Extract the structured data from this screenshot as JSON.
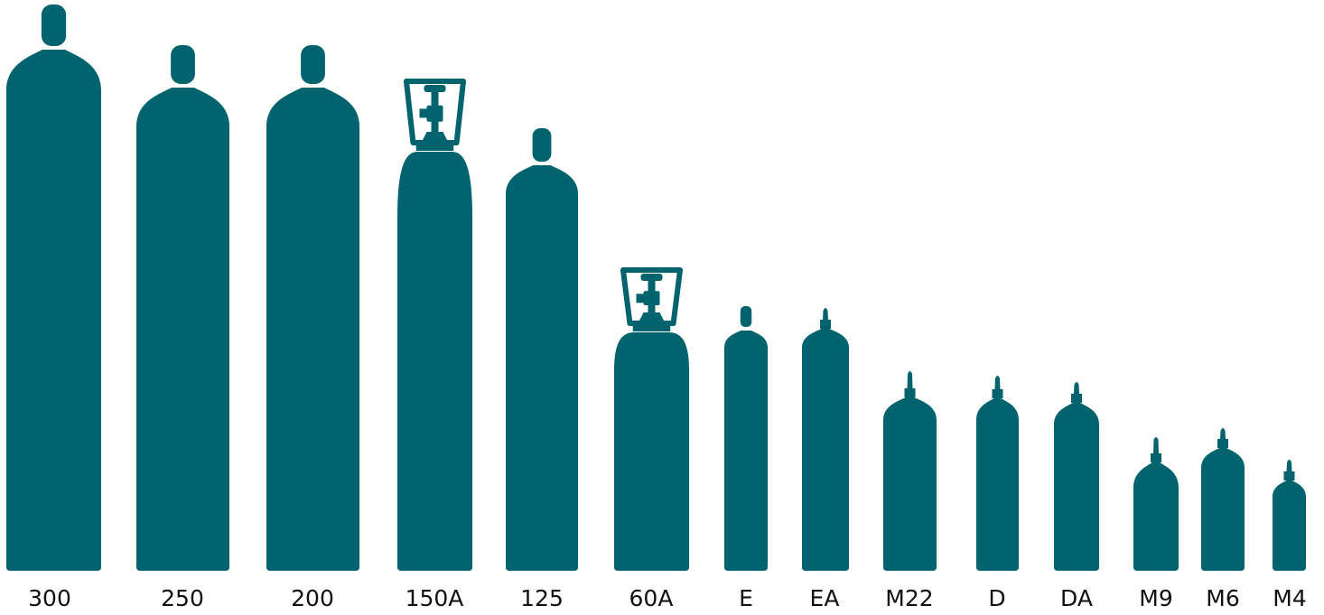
{
  "cylinders": [
    {
      "label": "300"
    },
    {
      "label": "250"
    },
    {
      "label": "200"
    },
    {
      "label": "150A"
    },
    {
      "label": "125"
    },
    {
      "label": "60A"
    },
    {
      "label": "E"
    },
    {
      "label": "EA"
    },
    {
      "label": "M22"
    },
    {
      "label": "D"
    },
    {
      "label": "DA"
    },
    {
      "label": "M9"
    },
    {
      "label": "M6"
    },
    {
      "label": "M4"
    }
  ]
}
